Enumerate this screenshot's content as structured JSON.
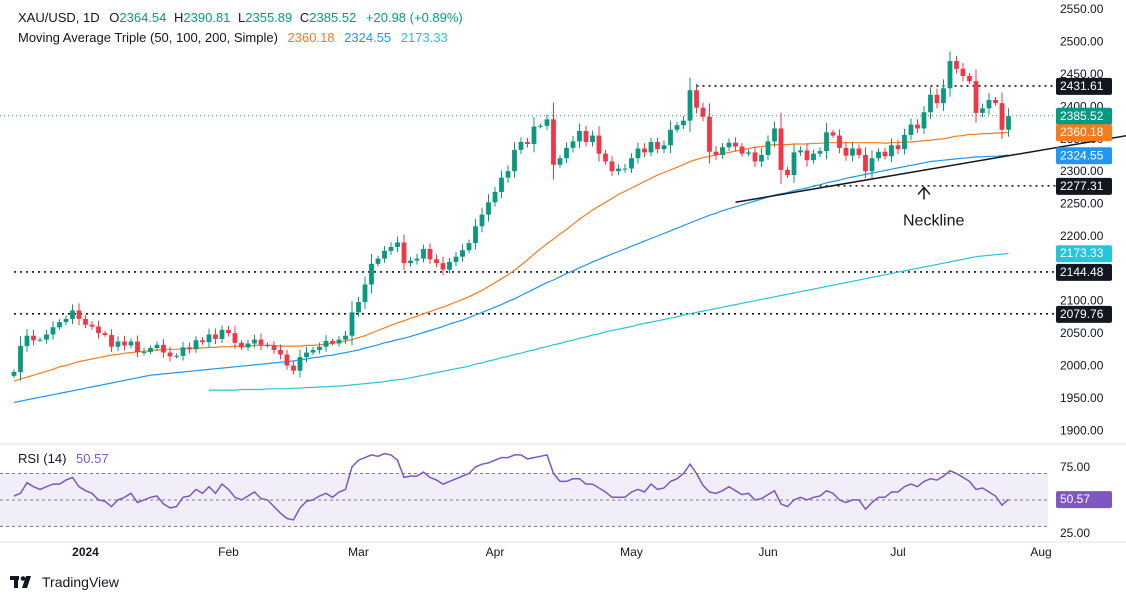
{
  "header": {
    "symbol": "XAU/USD, 1D",
    "o_label": "O",
    "o_value": "2364.54",
    "h_label": "H",
    "h_value": "2390.81",
    "l_label": "L",
    "l_value": "2355.89",
    "c_label": "C",
    "c_value": "2385.52",
    "change": "+20.98 (+0.89%)",
    "ma_label": "Moving Average Triple (50, 100, 200, Simple)",
    "ma50_value": "2360.18",
    "ma100_value": "2324.55",
    "ma200_value": "2173.33"
  },
  "rsi_header": {
    "label": "RSI (14)",
    "value": "50.57"
  },
  "footer": {
    "brand": "TradingView"
  },
  "colors": {
    "up": "#089981",
    "down": "#f23645",
    "ma50": "#f57c1f",
    "ma100": "#2196f3",
    "ma200": "#26c6da",
    "rsi": "#7e57c2",
    "text": "#131722",
    "axis": "#6a6d78"
  },
  "chart_data": [
    {
      "type": "candlestick",
      "title": "XAU/USD, 1D",
      "ylim": [
        1885,
        2555
      ],
      "y_ticks": [
        1900,
        1950,
        2000,
        2050,
        2100,
        2150,
        2200,
        2250,
        2300,
        2350,
        2400,
        2450,
        2500,
        2550
      ],
      "x_ticks": [
        "2024",
        "Feb",
        "Mar",
        "Apr",
        "May",
        "Jun",
        "Jul",
        "Aug"
      ],
      "x_tick_index": [
        11,
        33,
        53,
        74,
        95,
        116,
        136,
        158
      ],
      "closes": [
        1990,
        2030,
        2046,
        2039,
        2040,
        2048,
        2059,
        2067,
        2072,
        2085,
        2072,
        2063,
        2060,
        2050,
        2047,
        2029,
        2037,
        2031,
        2037,
        2021,
        2021,
        2027,
        2032,
        2020,
        2014,
        2015,
        2028,
        2025,
        2039,
        2036,
        2048,
        2041,
        2055,
        2050,
        2035,
        2028,
        2034,
        2040,
        2032,
        2031,
        2024,
        2017,
        2000,
        1992,
        2013,
        2020,
        2024,
        2029,
        2038,
        2034,
        2040,
        2046,
        2082,
        2098,
        2125,
        2157,
        2165,
        2177,
        2183,
        2190,
        2158,
        2162,
        2165,
        2180,
        2164,
        2158,
        2148,
        2160,
        2168,
        2178,
        2189,
        2215,
        2233,
        2252,
        2268,
        2290,
        2300,
        2333,
        2345,
        2342,
        2369,
        2370,
        2380,
        2310,
        2320,
        2336,
        2346,
        2362,
        2345,
        2355,
        2327,
        2315,
        2300,
        2304,
        2304,
        2320,
        2335,
        2329,
        2345,
        2334,
        2340,
        2364,
        2371,
        2378,
        2425,
        2398,
        2384,
        2330,
        2325,
        2337,
        2344,
        2338,
        2327,
        2329,
        2315,
        2325,
        2346,
        2366,
        2302,
        2294,
        2329,
        2332,
        2317,
        2327,
        2331,
        2360,
        2355,
        2336,
        2324,
        2335,
        2325,
        2300,
        2320,
        2330,
        2323,
        2340,
        2334,
        2356,
        2372,
        2366,
        2391,
        2418,
        2405,
        2428,
        2470,
        2458,
        2447,
        2439,
        2390,
        2397,
        2410,
        2405,
        2364,
        2385
      ],
      "ma50": [
        1976,
        1979,
        1982,
        1985,
        1988,
        1991,
        1994,
        1998,
        2000,
        2003,
        2006,
        2008,
        2010,
        2012,
        2014,
        2016,
        2017,
        2019,
        2020,
        2021,
        2022,
        2023,
        2024,
        2024,
        2025,
        2025,
        2026,
        2026,
        2027,
        2027,
        2028,
        2028,
        2029,
        2029,
        2030,
        2030,
        2030,
        2031,
        2031,
        2031,
        2031,
        2030,
        2030,
        2030,
        2030,
        2031,
        2031,
        2032,
        2033,
        2034,
        2036,
        2038,
        2040,
        2043,
        2046,
        2050,
        2054,
        2058,
        2062,
        2066,
        2069,
        2073,
        2076,
        2080,
        2083,
        2087,
        2090,
        2094,
        2098,
        2102,
        2106,
        2111,
        2116,
        2122,
        2128,
        2134,
        2140,
        2147,
        2155,
        2163,
        2172,
        2180,
        2188,
        2195,
        2203,
        2210,
        2218,
        2226,
        2233,
        2240,
        2246,
        2252,
        2258,
        2264,
        2269,
        2274,
        2279,
        2284,
        2289,
        2294,
        2298,
        2302,
        2306,
        2310,
        2315,
        2318,
        2321,
        2323,
        2325,
        2327,
        2329,
        2331,
        2333,
        2335,
        2337,
        2338,
        2340,
        2341,
        2341,
        2341,
        2342,
        2342,
        2342,
        2343,
        2343,
        2344,
        2344,
        2344,
        2344,
        2344,
        2344,
        2344,
        2344,
        2344,
        2343,
        2344,
        2344,
        2345,
        2345,
        2346,
        2347,
        2348,
        2349,
        2350,
        2352,
        2354,
        2355,
        2357,
        2357,
        2358,
        2358,
        2359,
        2359,
        2360
      ],
      "ma100": [
        1943,
        1945,
        1947,
        1949,
        1951,
        1953,
        1955,
        1957,
        1959,
        1961,
        1963,
        1965,
        1967,
        1969,
        1971,
        1973,
        1975,
        1977,
        1979,
        1981,
        1983,
        1985,
        1986,
        1987,
        1988,
        1989,
        1990,
        1991,
        1992,
        1993,
        1994,
        1995,
        1996,
        1997,
        1998,
        1999,
        2000,
        2001,
        2002,
        2003,
        2004,
        2005,
        2006,
        2007,
        2009,
        2010,
        2012,
        2013,
        2015,
        2016,
        2018,
        2020,
        2022,
        2024,
        2027,
        2029,
        2032,
        2035,
        2037,
        2040,
        2042,
        2045,
        2048,
        2051,
        2054,
        2057,
        2060,
        2064,
        2067,
        2070,
        2074,
        2078,
        2082,
        2086,
        2090,
        2094,
        2099,
        2103,
        2108,
        2113,
        2118,
        2123,
        2128,
        2132,
        2137,
        2142,
        2146,
        2151,
        2155,
        2160,
        2164,
        2168,
        2172,
        2176,
        2180,
        2184,
        2188,
        2192,
        2196,
        2200,
        2204,
        2208,
        2212,
        2216,
        2220,
        2224,
        2228,
        2232,
        2235,
        2239,
        2242,
        2245,
        2248,
        2251,
        2254,
        2257,
        2260,
        2263,
        2265,
        2267,
        2270,
        2272,
        2274,
        2277,
        2279,
        2282,
        2284,
        2286,
        2289,
        2291,
        2293,
        2295,
        2297,
        2299,
        2301,
        2303,
        2305,
        2307,
        2309,
        2311,
        2313,
        2315,
        2316,
        2317,
        2318,
        2319,
        2320,
        2321,
        2322,
        2322,
        2323,
        2323,
        2324,
        2325
      ],
      "ma200": [
        null,
        null,
        null,
        null,
        null,
        null,
        null,
        null,
        null,
        null,
        null,
        null,
        null,
        null,
        null,
        null,
        null,
        null,
        null,
        null,
        null,
        null,
        null,
        null,
        null,
        null,
        null,
        null,
        null,
        null,
        1962,
        1962,
        1962,
        1962,
        1962,
        1963,
        1963,
        1963,
        1963,
        1964,
        1964,
        1964,
        1964,
        1965,
        1965,
        1966,
        1966,
        1967,
        1967,
        1968,
        1968,
        1969,
        1970,
        1971,
        1972,
        1973,
        1974,
        1975,
        1977,
        1978,
        1979,
        1981,
        1983,
        1985,
        1987,
        1989,
        1991,
        1993,
        1995,
        1997,
        1999,
        2002,
        2004,
        2007,
        2009,
        2012,
        2014,
        2017,
        2019,
        2022,
        2024,
        2027,
        2029,
        2032,
        2034,
        2037,
        2039,
        2042,
        2044,
        2047,
        2049,
        2052,
        2054,
        2056,
        2058,
        2060,
        2063,
        2065,
        2067,
        2069,
        2071,
        2073,
        2075,
        2078,
        2080,
        2082,
        2084,
        2086,
        2088,
        2090,
        2092,
        2094,
        2096,
        2098,
        2100,
        2102,
        2104,
        2106,
        2108,
        2110,
        2112,
        2114,
        2116,
        2118,
        2120,
        2122,
        2124,
        2126,
        2128,
        2130,
        2132,
        2134,
        2136,
        2138,
        2140,
        2142,
        2144,
        2146,
        2148,
        2150,
        2152,
        2154,
        2156,
        2158,
        2160,
        2162,
        2164,
        2166,
        2168,
        2169,
        2170,
        2171,
        2172,
        2173
      ],
      "levels": [
        {
          "label": "2431.61",
          "value": 2431.61,
          "from_index": 105
        },
        {
          "label": "2277.31",
          "value": 2277.31,
          "from_index": 123
        },
        {
          "label": "2144.48",
          "value": 2144.48,
          "from_index": 0
        },
        {
          "label": "2079.76",
          "value": 2079.76,
          "from_index": 0
        }
      ],
      "last_price": {
        "label": "2385.52",
        "value": 2385.52
      },
      "ma_labels": [
        {
          "label": "2360.18",
          "value": 2360.18,
          "series": "ma50"
        },
        {
          "label": "2324.55",
          "value": 2324.55,
          "series": "ma100"
        },
        {
          "label": "2173.33",
          "value": 2173.33,
          "series": "ma200"
        }
      ],
      "neckline": {
        "start": [
          111,
          2252
        ],
        "end": [
          180,
          2370
        ]
      },
      "annotation": {
        "text": "Neckline",
        "index": 140,
        "value": 2278
      }
    },
    {
      "type": "line",
      "title": "RSI (14)",
      "ylim": [
        22,
        90
      ],
      "y_ticks": [
        25,
        75
      ],
      "bands": [
        30,
        50,
        70
      ],
      "values": [
        53,
        55,
        63,
        60,
        58,
        60,
        62,
        62,
        65,
        67,
        60,
        57,
        55,
        50,
        49,
        45,
        50,
        52,
        55,
        48,
        50,
        52,
        53,
        47,
        44,
        45,
        52,
        53,
        58,
        55,
        60,
        55,
        62,
        58,
        52,
        50,
        53,
        56,
        51,
        50,
        45,
        40,
        36,
        35,
        44,
        49,
        50,
        53,
        55,
        52,
        56,
        58,
        75,
        80,
        82,
        84,
        83,
        85,
        84,
        80,
        67,
        68,
        68,
        71,
        67,
        65,
        62,
        64,
        66,
        68,
        70,
        75,
        77,
        78,
        80,
        82,
        82,
        84,
        84,
        81,
        82,
        83,
        84,
        70,
        64,
        64,
        66,
        66,
        62,
        62,
        59,
        56,
        52,
        52,
        52,
        56,
        58,
        56,
        62,
        58,
        59,
        64,
        66,
        70,
        77,
        70,
        61,
        56,
        55,
        57,
        60,
        57,
        54,
        55,
        50,
        51,
        54,
        57,
        47,
        45,
        50,
        52,
        50,
        52,
        53,
        57,
        55,
        50,
        48,
        50,
        50,
        43,
        48,
        52,
        52,
        56,
        56,
        60,
        62,
        60,
        64,
        66,
        65,
        68,
        72,
        70,
        67,
        64,
        58,
        59,
        56,
        53,
        46,
        50.57
      ],
      "last_label": "50.57"
    }
  ]
}
